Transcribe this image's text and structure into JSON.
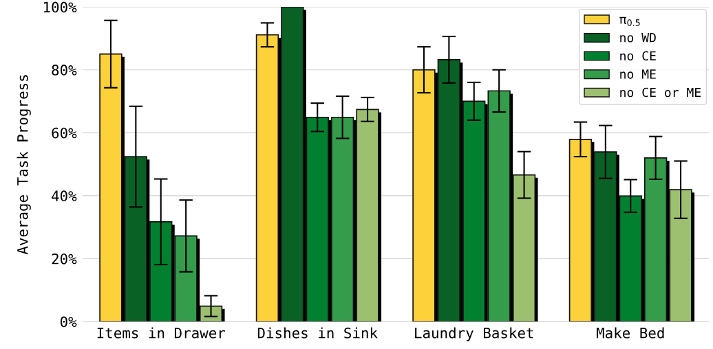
{
  "chart_data": {
    "type": "bar",
    "ylabel": "Average Task Progress",
    "categories": [
      "Items in Drawer",
      "Dishes in Sink",
      "Laundry Basket",
      "Make Bed"
    ],
    "series": [
      {
        "name": "π$_{0.5}$",
        "color": "#fdd13a",
        "values": [
          85,
          91.1,
          80.0,
          57.9
        ],
        "errors": [
          10.7,
          3.8,
          7.3,
          5.5
        ]
      },
      {
        "name": "no WD",
        "color": "#096125",
        "values": [
          52.4,
          100,
          83.2,
          53.9
        ],
        "errors": [
          16,
          null,
          7.4,
          8.4
        ]
      },
      {
        "name": "no CE",
        "color": "#01812f",
        "values": [
          31.7,
          64.9,
          70.0,
          39.9
        ],
        "errors": [
          13.6,
          4.5,
          6,
          5.2
        ]
      },
      {
        "name": "no ME",
        "color": "#359c4c",
        "values": [
          27.2,
          64.9,
          73.3,
          52.0
        ],
        "errors": [
          11.4,
          6.7,
          6.7,
          6.8
        ]
      },
      {
        "name": "no CE or ME",
        "color": "#9dbf70",
        "values": [
          4.9,
          67.4,
          46.6,
          41.9
        ],
        "errors": [
          3.3,
          3.8,
          7.4,
          9.1
        ]
      }
    ],
    "ylim": [
      0,
      100
    ],
    "yticks": [
      {
        "value": 0,
        "label": "0%"
      },
      {
        "value": 20,
        "label": "20%"
      },
      {
        "value": 40,
        "label": "40%"
      },
      {
        "value": 60,
        "label": "60%"
      },
      {
        "value": 80,
        "label": "80%"
      },
      {
        "value": 100,
        "label": "100%"
      }
    ],
    "grid": "y",
    "legend": "top right"
  }
}
